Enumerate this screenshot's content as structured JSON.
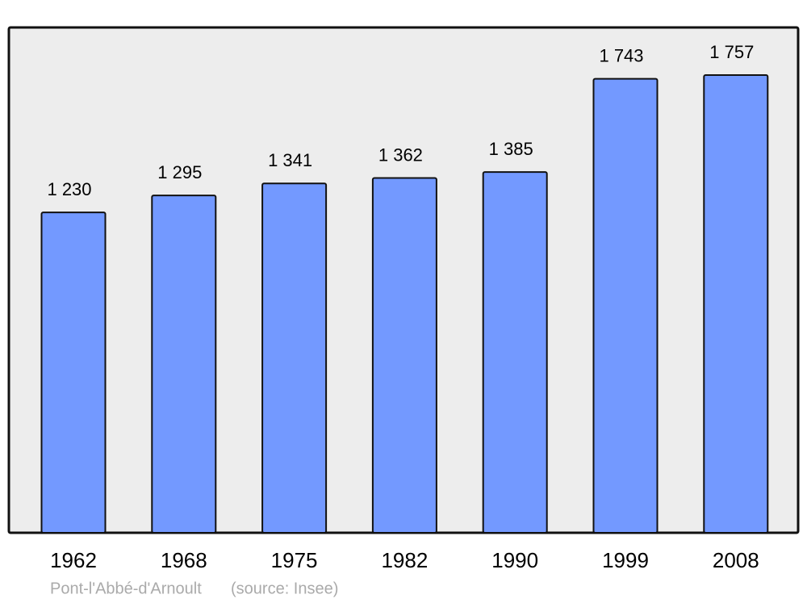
{
  "chart_data": {
    "type": "bar",
    "categories": [
      "1962",
      "1968",
      "1975",
      "1982",
      "1990",
      "1999",
      "2008"
    ],
    "values": [
      1230,
      1295,
      1341,
      1362,
      1385,
      1743,
      1757
    ],
    "value_labels": [
      "1 230",
      "1 295",
      "1 341",
      "1 362",
      "1 385",
      "1 743",
      "1 757"
    ],
    "color": "#7399ff",
    "ylim": [
      0,
      1940
    ],
    "caption": "Pont-l'Abbé-d'Arnoult",
    "source": "(source: Insee)"
  }
}
